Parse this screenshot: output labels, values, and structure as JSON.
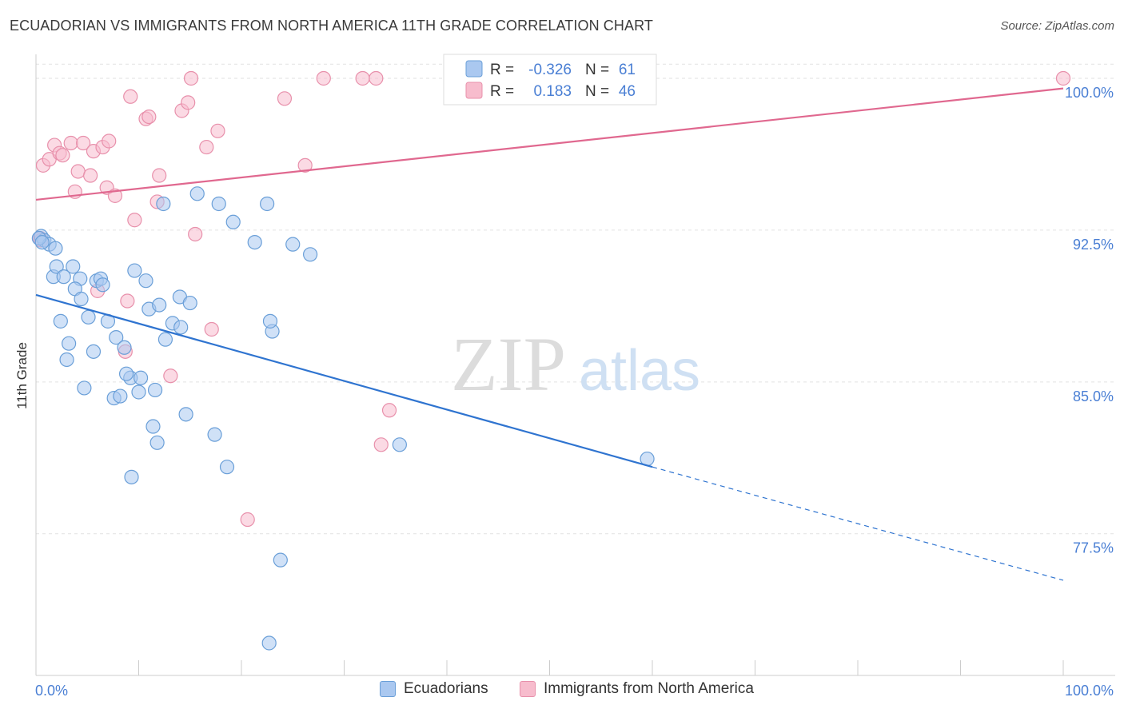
{
  "title": "ECUADORIAN VS IMMIGRANTS FROM NORTH AMERICA 11TH GRADE CORRELATION CHART",
  "source": "Source: ZipAtlas.com",
  "watermark": {
    "part1": "ZIP",
    "part2": "atlas"
  },
  "colors": {
    "blue_fill": "#aac8f0",
    "blue_stroke": "#6a9fd8",
    "blue_line": "#2f74d0",
    "pink_fill": "#f7bccd",
    "pink_stroke": "#e890ab",
    "pink_line": "#e0688f",
    "axis_text": "#4a7fd4",
    "grid": "#e2e2e2"
  },
  "legend_top": {
    "rows": [
      {
        "r_label": "R =",
        "r_value": "-0.326",
        "n_label": "N =",
        "n_value": "61"
      },
      {
        "r_label": "R =",
        "r_value": "0.183",
        "n_label": "N =",
        "n_value": "46"
      }
    ]
  },
  "legend_bottom": {
    "series1": "Ecuadorians",
    "series2": "Immigrants from North America"
  },
  "chart_data": {
    "type": "scatter",
    "title": "ECUADORIAN VS IMMIGRANTS FROM NORTH AMERICA 11TH GRADE CORRELATION CHART",
    "xlabel": "",
    "ylabel": "11th Grade",
    "xlim": [
      0,
      100
    ],
    "ylim": [
      70.5,
      101.5
    ],
    "x_tick_labels": [
      "0.0%",
      "100.0%"
    ],
    "y_ticks": [
      77.5,
      85.0,
      92.5,
      100.0
    ],
    "y_tick_labels": [
      "77.5%",
      "85.0%",
      "92.5%",
      "100.0%"
    ],
    "grid": true,
    "series": [
      {
        "name": "Ecuadorians",
        "r": -0.326,
        "n": 61,
        "trend": {
          "x0": 0,
          "y0": 89.3,
          "x1": 60,
          "y1": 80.8,
          "dash_x1": 100,
          "dash_y1": 75.2
        },
        "points": [
          [
            0.5,
            92.2
          ],
          [
            0.8,
            92.0
          ],
          [
            1.3,
            91.8
          ],
          [
            1.9,
            91.6
          ],
          [
            1.7,
            90.2
          ],
          [
            2.0,
            90.7
          ],
          [
            2.7,
            90.2
          ],
          [
            3.6,
            90.7
          ],
          [
            4.3,
            90.1
          ],
          [
            3.8,
            89.6
          ],
          [
            4.4,
            89.1
          ],
          [
            5.9,
            90.0
          ],
          [
            6.3,
            90.1
          ],
          [
            6.5,
            89.8
          ],
          [
            2.4,
            88.0
          ],
          [
            5.1,
            88.2
          ],
          [
            3.2,
            86.9
          ],
          [
            3.0,
            86.1
          ],
          [
            5.6,
            86.5
          ],
          [
            7.0,
            88.0
          ],
          [
            7.8,
            87.2
          ],
          [
            8.6,
            86.7
          ],
          [
            9.2,
            85.2
          ],
          [
            8.8,
            85.4
          ],
          [
            10.2,
            85.2
          ],
          [
            4.7,
            84.7
          ],
          [
            7.6,
            84.2
          ],
          [
            8.2,
            84.3
          ],
          [
            10.0,
            84.5
          ],
          [
            11.6,
            84.6
          ],
          [
            9.6,
            90.5
          ],
          [
            10.7,
            90.0
          ],
          [
            11.0,
            88.6
          ],
          [
            12.0,
            88.8
          ],
          [
            12.6,
            87.1
          ],
          [
            13.3,
            87.9
          ],
          [
            14.1,
            87.7
          ],
          [
            14.0,
            89.2
          ],
          [
            15.0,
            88.9
          ],
          [
            9.3,
            80.3
          ],
          [
            11.4,
            82.8
          ],
          [
            11.8,
            82.0
          ],
          [
            14.6,
            83.4
          ],
          [
            17.4,
            82.4
          ],
          [
            18.6,
            80.8
          ],
          [
            23.8,
            76.2
          ],
          [
            22.7,
            72.1
          ],
          [
            12.4,
            93.8
          ],
          [
            15.7,
            94.3
          ],
          [
            17.8,
            93.8
          ],
          [
            19.2,
            92.9
          ],
          [
            21.3,
            91.9
          ],
          [
            23.0,
            87.5
          ],
          [
            22.8,
            88.0
          ],
          [
            22.5,
            93.8
          ],
          [
            25.0,
            91.8
          ],
          [
            26.7,
            91.3
          ],
          [
            35.4,
            81.9
          ],
          [
            59.5,
            81.2
          ],
          [
            0.3,
            92.1
          ],
          [
            0.6,
            91.9
          ]
        ]
      },
      {
        "name": "Immigrants from North America",
        "r": 0.183,
        "n": 46,
        "trend": {
          "x0": 0,
          "y0": 94.0,
          "x1": 100,
          "y1": 99.5
        },
        "points": [
          [
            0.4,
            92.1
          ],
          [
            0.7,
            95.7
          ],
          [
            1.3,
            96.0
          ],
          [
            1.8,
            96.7
          ],
          [
            2.3,
            96.3
          ],
          [
            2.6,
            96.2
          ],
          [
            3.4,
            96.8
          ],
          [
            3.8,
            94.4
          ],
          [
            4.1,
            95.4
          ],
          [
            4.6,
            96.8
          ],
          [
            5.3,
            95.2
          ],
          [
            5.6,
            96.4
          ],
          [
            6.5,
            96.6
          ],
          [
            7.1,
            96.9
          ],
          [
            6.9,
            94.6
          ],
          [
            7.7,
            94.2
          ],
          [
            8.9,
            89.0
          ],
          [
            8.7,
            86.5
          ],
          [
            9.6,
            93.0
          ],
          [
            9.2,
            99.1
          ],
          [
            10.7,
            98.0
          ],
          [
            11.0,
            98.1
          ],
          [
            11.8,
            93.9
          ],
          [
            12.0,
            95.2
          ],
          [
            13.1,
            85.3
          ],
          [
            14.2,
            98.4
          ],
          [
            14.8,
            98.8
          ],
          [
            15.1,
            100.0
          ],
          [
            15.5,
            92.3
          ],
          [
            16.6,
            96.6
          ],
          [
            17.1,
            87.6
          ],
          [
            17.7,
            97.4
          ],
          [
            20.6,
            78.2
          ],
          [
            24.2,
            99.0
          ],
          [
            26.2,
            95.7
          ],
          [
            28.0,
            100.0
          ],
          [
            31.8,
            100.0
          ],
          [
            33.1,
            100.0
          ],
          [
            33.6,
            81.9
          ],
          [
            34.4,
            83.6
          ],
          [
            40.4,
            100.0
          ],
          [
            41.9,
            100.0
          ],
          [
            48.3,
            100.0
          ],
          [
            100.0,
            100.0
          ],
          [
            0.5,
            92.0
          ],
          [
            6.0,
            89.5
          ]
        ]
      }
    ]
  }
}
